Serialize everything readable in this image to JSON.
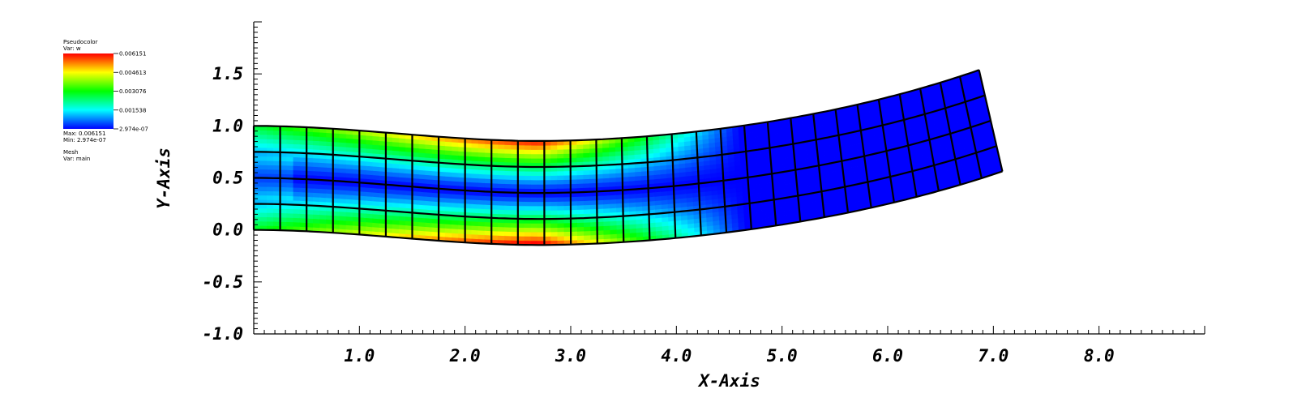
{
  "legend": {
    "plot_name": "Pseudocolor",
    "variable": "Var: w",
    "ticks": [
      "0.006151",
      "0.004613",
      "0.003076",
      "0.001538",
      "2.974e-07"
    ],
    "max_label": "Max: 0.006151",
    "min_label": "Min: 2.974e-07",
    "mesh_name": "Mesh",
    "mesh_variable": "Var: main",
    "colormap": [
      "#0000ff",
      "#00ffff",
      "#00ff00",
      "#ffff00",
      "#ff0000"
    ]
  },
  "chart_data": {
    "type": "heatmap",
    "xlabel": "X-Axis",
    "ylabel": "Y-Axis",
    "xlim": [
      0,
      9
    ],
    "ylim": [
      -1,
      2
    ],
    "x_ticks": [
      "1.0",
      "2.0",
      "3.0",
      "4.0",
      "5.0",
      "6.0",
      "7.0",
      "8.0"
    ],
    "y_ticks": [
      "-1.0",
      "-0.5",
      "0.0",
      "0.5",
      "1.0",
      "1.5"
    ],
    "field": "w",
    "value_range": [
      2.974e-07,
      0.006151
    ],
    "mesh": {
      "elements_along_length": 30,
      "elements_through_thickness": 4,
      "undeformed_length": 7.5,
      "undeformed_height": 1.0,
      "max_deflection_x": 2.7,
      "left_edge": {
        "bottom": [
          0.0,
          0.0
        ],
        "top": [
          0.0,
          1.0
        ]
      },
      "right_edge": {
        "bottom": [
          7.35,
          0.67
        ],
        "top": [
          7.18,
          1.42
        ]
      },
      "peak_w_location": [
        2.7,
        -0.15
      ]
    }
  }
}
